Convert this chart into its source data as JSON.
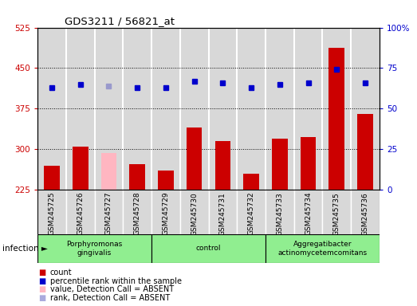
{
  "title": "GDS3211 / 56821_at",
  "samples": [
    "GSM245725",
    "GSM245726",
    "GSM245727",
    "GSM245728",
    "GSM245729",
    "GSM245730",
    "GSM245731",
    "GSM245732",
    "GSM245733",
    "GSM245734",
    "GSM245735",
    "GSM245736"
  ],
  "counts": [
    270,
    305,
    293,
    272,
    260,
    340,
    315,
    255,
    320,
    322,
    488,
    365
  ],
  "percentile_ranks": [
    63,
    65,
    64,
    63,
    63,
    67,
    66,
    63,
    65,
    66,
    74,
    66
  ],
  "absent_mask": [
    false,
    false,
    true,
    false,
    false,
    false,
    false,
    false,
    false,
    false,
    false,
    false
  ],
  "group_defs": [
    {
      "start": 0,
      "end": 3,
      "label": "Porphyromonas\ngingivalis",
      "color": "#90ee90"
    },
    {
      "start": 4,
      "end": 7,
      "label": "control",
      "color": "#90ee90"
    },
    {
      "start": 8,
      "end": 11,
      "label": "Aggregatibacter\nactinomycetemcomitans",
      "color": "#90ee90"
    }
  ],
  "ylim_left": [
    225,
    525
  ],
  "ylim_right": [
    0,
    100
  ],
  "yticks_left": [
    225,
    300,
    375,
    450,
    525
  ],
  "yticks_right": [
    0,
    25,
    50,
    75,
    100
  ],
  "bar_color_normal": "#cc0000",
  "bar_color_absent": "#ffb6c1",
  "dot_color_normal": "#0000cc",
  "dot_color_absent": "#9999cc",
  "grid_ticks": [
    300,
    375,
    450
  ],
  "legend_items": [
    {
      "label": "count",
      "color": "#cc0000"
    },
    {
      "label": "percentile rank within the sample",
      "color": "#0000cc"
    },
    {
      "label": "value, Detection Call = ABSENT",
      "color": "#ffb6c1"
    },
    {
      "label": "rank, Detection Call = ABSENT",
      "color": "#aaaadd"
    }
  ],
  "infection_label": "infection",
  "right_axis_color": "#0000cc",
  "left_axis_color": "#cc0000",
  "plot_bg_color": "#ffffff",
  "col_bg_color": "#d8d8d8"
}
